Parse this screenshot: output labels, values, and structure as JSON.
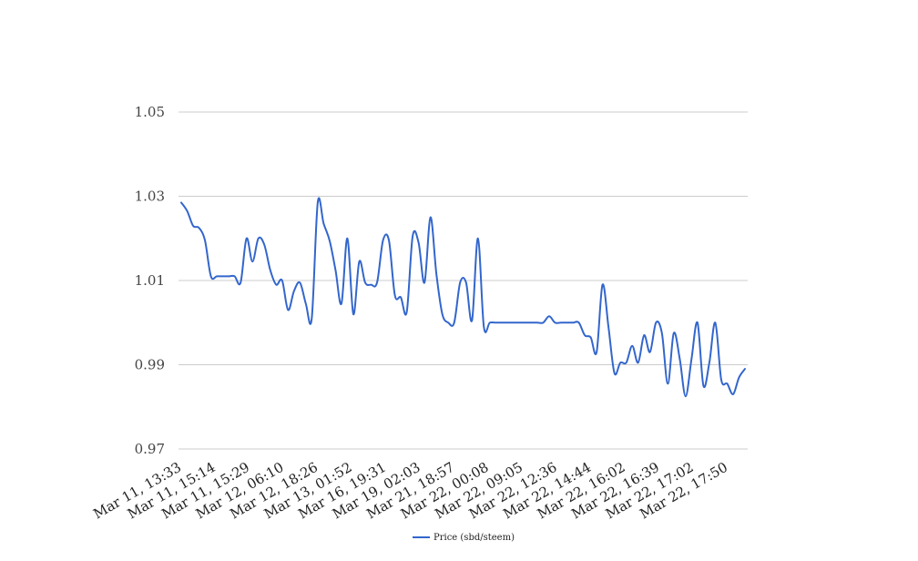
{
  "chart_data": {
    "type": "line",
    "title": "",
    "xlabel": "",
    "ylabel": "",
    "ylim": [
      0.97,
      1.05
    ],
    "yticks": [
      "1.05",
      "1.03",
      "1.01",
      "0.99",
      "0.97"
    ],
    "ytick_values": [
      1.05,
      1.03,
      1.01,
      0.99,
      0.97
    ],
    "xtick_labels": [
      "Mar 11, 13:33",
      "Mar 11, 15:14",
      "Mar 11, 15:29",
      "Mar 12, 06:10",
      "Mar 12, 18:26",
      "Mar 13, 01:52",
      "Mar 16, 19:31",
      "Mar 19, 02:03",
      "Mar 21, 18:57",
      "Mar 22, 00:08",
      "Mar 22, 09:05",
      "Mar 22, 12:36",
      "Mar 22, 14:44",
      "Mar 22, 16:02",
      "Mar 22, 16:39",
      "Mar 22, 17:02",
      "Mar 22, 17:50"
    ],
    "grid": true,
    "legend_position": "bottom-center",
    "series": [
      {
        "name": "Price (sbd/steem)",
        "color": "#3366cc",
        "values": [
          1.0285,
          1.0265,
          1.023,
          1.0225,
          1.0195,
          1.011,
          1.011,
          1.011,
          1.011,
          1.011,
          1.0095,
          1.02,
          1.0145,
          1.02,
          1.0185,
          1.0125,
          1.009,
          1.01,
          1.003,
          1.0075,
          1.0095,
          1.0045,
          1.001,
          1.0285,
          1.0235,
          1.0195,
          1.0125,
          1.0045,
          1.02,
          1.002,
          1.0145,
          1.0095,
          1.009,
          1.0095,
          1.0195,
          1.0195,
          1.0065,
          1.006,
          1.0025,
          1.0205,
          1.019,
          1.0095,
          1.025,
          1.0115,
          1.002,
          1.0,
          1.0,
          1.0095,
          1.0095,
          1.0005,
          1.02,
          0.999,
          1.0,
          1.0,
          1.0,
          1.0,
          1.0,
          1.0,
          1.0,
          1.0,
          1.0,
          1.0,
          1.0015,
          1.0,
          1.0,
          1.0,
          1.0,
          1.0,
          0.997,
          0.9965,
          0.993,
          1.009,
          0.999,
          0.988,
          0.9905,
          0.9905,
          0.9945,
          0.9905,
          0.997,
          0.993,
          1.0,
          0.9975,
          0.9855,
          0.9975,
          0.9915,
          0.9825,
          0.9915,
          1.0,
          0.985,
          0.9905,
          1.0,
          0.9865,
          0.9855,
          0.983,
          0.987,
          0.989
        ]
      }
    ]
  }
}
